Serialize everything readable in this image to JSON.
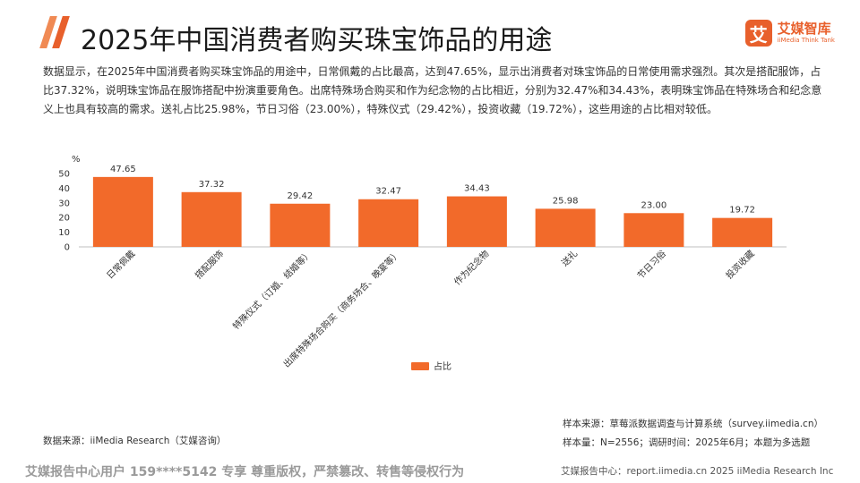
{
  "header": {
    "title": "2025年中国消费者购买珠宝饰品的用途",
    "logo_mark": "艾",
    "logo_cn": "艾媒智库",
    "logo_en": "iiMedia Think Tank"
  },
  "description": "数据显示，在2025年中国消费者购买珠宝饰品的用途中，日常佩戴的占比最高，达到47.65%，显示出消费者对珠宝饰品的日常使用需求强烈。其次是搭配服饰，占比37.32%，说明珠宝饰品在服饰搭配中扮演重要角色。出席特殊场合购买和作为纪念物的占比相近，分别为32.47%和34.43%，表明珠宝饰品在特殊场合和纪念意义上也具有较高的需求。送礼占比25.98%，节日习俗（23.00%），特殊仪式（29.42%），投资收藏（19.72%），这些用途的占比相对较低。",
  "chart_data": {
    "type": "bar",
    "unit": "%",
    "categories": [
      "日常佩戴",
      "搭配服饰",
      "特殊仪式（订婚、结婚等）",
      "出席特殊场合购买（商务场合、晚宴等）",
      "作为纪念物",
      "送礼",
      "节日习俗",
      "投资收藏"
    ],
    "series": [
      {
        "name": "占比",
        "values": [
          47.65,
          37.32,
          29.42,
          32.47,
          34.43,
          25.98,
          23.0,
          19.72
        ],
        "color": "#f26a2a"
      }
    ],
    "value_labels": [
      "47.65",
      "37.32",
      "29.42",
      "32.47",
      "34.43",
      "25.98",
      "23.00",
      "19.72"
    ],
    "yticks": [
      "0",
      "10",
      "20",
      "30",
      "40",
      "50"
    ],
    "ylim": [
      0,
      50
    ],
    "grid": false,
    "legend_position": "bottom-center"
  },
  "sources": {
    "data_source": "数据来源：iiMedia Research（艾媒咨询）",
    "sample_source": "样本来源：草莓派数据调查与计算系统（survey.iimedia.cn）",
    "sample_size": "样本量：N=2556；调研时间：2025年6月；本题为多选题"
  },
  "footer": {
    "watermark": "艾媒报告中心用户 159****5142 专享 尊重版权，严禁篡改、转售等侵权行为",
    "center": "艾媒报告中心：report.iimedia.cn  2025 iiMedia Research Inc"
  },
  "colors": {
    "accent": "#e8602c",
    "bar": "#f26a2a",
    "light_accent": "#f08a54"
  }
}
